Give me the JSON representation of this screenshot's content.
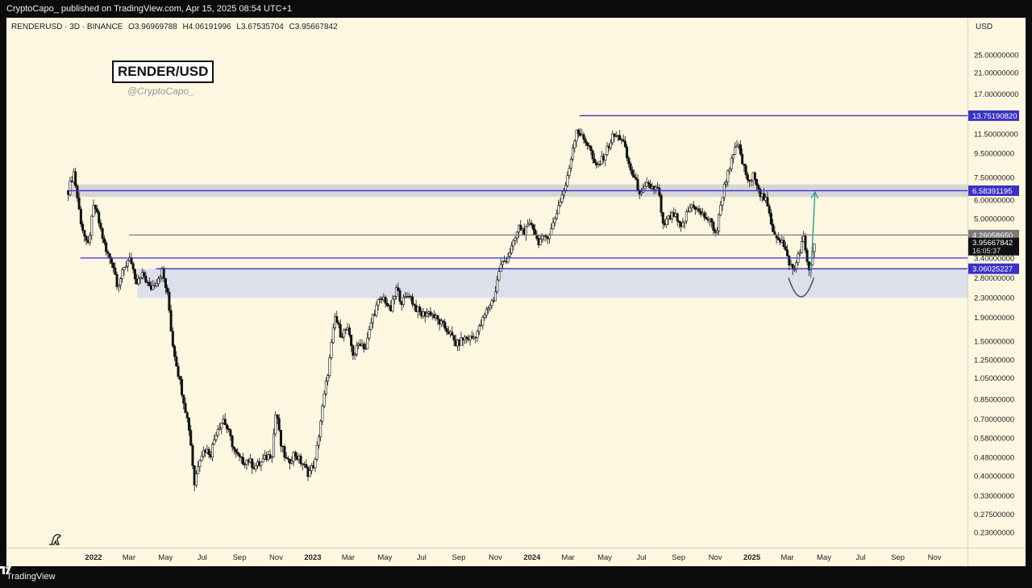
{
  "publish_line": "CryptoCapo_ published on TradingView.com, Apr 15, 2025 08:54 UTC+1",
  "footer": {
    "brand": "TradingView",
    "logo_icon": "tradingview-logo-icon"
  },
  "symbol_line": {
    "symbol": "RENDERUSD · 3D · BINANCE",
    "open": "O3.96969788",
    "high": "H4.06191996",
    "low": "L3.67535704",
    "close": "C3.95667842"
  },
  "watermark": {
    "title": "RENDER/USD",
    "handle": "@CryptoCapo_"
  },
  "axis": {
    "currency": "USD"
  },
  "chart_data": {
    "type": "candlestick",
    "scale": "log",
    "ylim": [
      0.2,
      32
    ],
    "y_ticks": [
      "25.00000000",
      "21.00000000",
      "17.00000000",
      "11.50000000",
      "9.50000000",
      "7.50000000",
      "6.00000000",
      "5.00000000",
      "3.40000000",
      "2.80000000",
      "2.30000000",
      "1.90000000",
      "1.50000000",
      "1.25000000",
      "1.05000000",
      "0.85000000",
      "0.70000000",
      "0.58000000",
      "0.48000000",
      "0.40000000",
      "0.33000000",
      "0.27500000",
      "0.23000000"
    ],
    "x_ticks": [
      {
        "label": "2022",
        "date": "2022-01-01",
        "bold": true
      },
      {
        "label": "Mar",
        "date": "2022-03-01"
      },
      {
        "label": "May",
        "date": "2022-05-01"
      },
      {
        "label": "Jul",
        "date": "2022-07-01"
      },
      {
        "label": "Sep",
        "date": "2022-09-01"
      },
      {
        "label": "Nov",
        "date": "2022-11-01"
      },
      {
        "label": "2023",
        "date": "2023-01-01",
        "bold": true
      },
      {
        "label": "Mar",
        "date": "2023-03-01"
      },
      {
        "label": "May",
        "date": "2023-05-01"
      },
      {
        "label": "Jul",
        "date": "2023-07-01"
      },
      {
        "label": "Sep",
        "date": "2023-09-01"
      },
      {
        "label": "Nov",
        "date": "2023-11-01"
      },
      {
        "label": "2024",
        "date": "2024-01-01",
        "bold": true
      },
      {
        "label": "Mar",
        "date": "2024-03-01"
      },
      {
        "label": "May",
        "date": "2024-05-01"
      },
      {
        "label": "Jul",
        "date": "2024-07-01"
      },
      {
        "label": "Sep",
        "date": "2024-09-01"
      },
      {
        "label": "Nov",
        "date": "2024-11-01"
      },
      {
        "label": "2025",
        "date": "2025-01-01",
        "bold": true
      },
      {
        "label": "Mar",
        "date": "2025-03-01"
      },
      {
        "label": "May",
        "date": "2025-05-01"
      },
      {
        "label": "Jul",
        "date": "2025-07-01"
      },
      {
        "label": "Sep",
        "date": "2025-09-01"
      },
      {
        "label": "Nov",
        "date": "2025-11-01"
      }
    ],
    "price_path": [
      [
        "2021-11-20",
        6.6
      ],
      [
        "2021-11-29",
        7.9
      ],
      [
        "2021-12-10",
        5.0
      ],
      [
        "2021-12-22",
        3.7
      ],
      [
        "2022-01-02",
        5.8
      ],
      [
        "2022-01-12",
        4.6
      ],
      [
        "2022-01-22",
        3.6
      ],
      [
        "2022-02-01",
        3.3
      ],
      [
        "2022-02-10",
        2.6
      ],
      [
        "2022-02-20",
        3.0
      ],
      [
        "2022-03-02",
        3.5
      ],
      [
        "2022-03-12",
        2.6
      ],
      [
        "2022-03-25",
        2.9
      ],
      [
        "2022-04-05",
        2.5
      ],
      [
        "2022-04-15",
        2.7
      ],
      [
        "2022-04-25",
        3.0
      ],
      [
        "2022-05-05",
        2.3
      ],
      [
        "2022-05-12",
        1.5
      ],
      [
        "2022-05-22",
        1.1
      ],
      [
        "2022-06-01",
        0.82
      ],
      [
        "2022-06-10",
        0.62
      ],
      [
        "2022-06-18",
        0.37
      ],
      [
        "2022-06-26",
        0.48
      ],
      [
        "2022-07-05",
        0.52
      ],
      [
        "2022-07-15",
        0.5
      ],
      [
        "2022-07-25",
        0.63
      ],
      [
        "2022-08-05",
        0.7
      ],
      [
        "2022-08-15",
        0.6
      ],
      [
        "2022-08-25",
        0.5
      ],
      [
        "2022-09-05",
        0.46
      ],
      [
        "2022-09-15",
        0.47
      ],
      [
        "2022-09-25",
        0.44
      ],
      [
        "2022-10-05",
        0.45
      ],
      [
        "2022-10-15",
        0.48
      ],
      [
        "2022-10-25",
        0.5
      ],
      [
        "2022-11-01",
        0.78
      ],
      [
        "2022-11-08",
        0.55
      ],
      [
        "2022-11-20",
        0.45
      ],
      [
        "2022-12-01",
        0.5
      ],
      [
        "2022-12-15",
        0.45
      ],
      [
        "2022-12-25",
        0.41
      ],
      [
        "2023-01-05",
        0.46
      ],
      [
        "2023-01-15",
        0.72
      ],
      [
        "2023-01-28",
        1.2
      ],
      [
        "2023-02-07",
        1.9
      ],
      [
        "2023-02-17",
        1.6
      ],
      [
        "2023-02-27",
        1.7
      ],
      [
        "2023-03-10",
        1.3
      ],
      [
        "2023-03-20",
        1.5
      ],
      [
        "2023-03-30",
        1.4
      ],
      [
        "2023-04-10",
        1.9
      ],
      [
        "2023-04-20",
        2.2
      ],
      [
        "2023-04-30",
        2.3
      ],
      [
        "2023-05-10",
        2.0
      ],
      [
        "2023-05-20",
        2.5
      ],
      [
        "2023-05-30",
        2.2
      ],
      [
        "2023-06-10",
        2.4
      ],
      [
        "2023-06-20",
        2.1
      ],
      [
        "2023-07-01",
        1.95
      ],
      [
        "2023-07-15",
        2.0
      ],
      [
        "2023-08-01",
        1.8
      ],
      [
        "2023-08-15",
        1.65
      ],
      [
        "2023-08-28",
        1.45
      ],
      [
        "2023-09-10",
        1.55
      ],
      [
        "2023-09-25",
        1.55
      ],
      [
        "2023-10-05",
        1.7
      ],
      [
        "2023-10-20",
        2.1
      ],
      [
        "2023-10-30",
        2.3
      ],
      [
        "2023-11-08",
        3.1
      ],
      [
        "2023-11-20",
        3.4
      ],
      [
        "2023-12-01",
        3.9
      ],
      [
        "2023-12-10",
        4.6
      ],
      [
        "2023-12-20",
        4.4
      ],
      [
        "2024-01-01",
        4.8
      ],
      [
        "2024-01-10",
        4.0
      ],
      [
        "2024-01-20",
        4.1
      ],
      [
        "2024-02-01",
        4.4
      ],
      [
        "2024-02-15",
        5.8
      ],
      [
        "2024-02-28",
        7.2
      ],
      [
        "2024-03-08",
        9.8
      ],
      [
        "2024-03-15",
        12.1
      ],
      [
        "2024-03-25",
        11.0
      ],
      [
        "2024-04-05",
        10.3
      ],
      [
        "2024-04-15",
        8.2
      ],
      [
        "2024-04-25",
        8.8
      ],
      [
        "2024-05-05",
        9.9
      ],
      [
        "2024-05-15",
        11.3
      ],
      [
        "2024-05-30",
        11.0
      ],
      [
        "2024-06-10",
        8.5
      ],
      [
        "2024-06-20",
        7.3
      ],
      [
        "2024-07-01",
        6.3
      ],
      [
        "2024-07-10",
        6.9
      ],
      [
        "2024-07-20",
        6.8
      ],
      [
        "2024-07-30",
        6.6
      ],
      [
        "2024-08-05",
        4.6
      ],
      [
        "2024-08-15",
        5.0
      ],
      [
        "2024-08-25",
        5.2
      ],
      [
        "2024-09-05",
        4.5
      ],
      [
        "2024-09-15",
        5.3
      ],
      [
        "2024-09-25",
        5.8
      ],
      [
        "2024-10-05",
        5.3
      ],
      [
        "2024-10-15",
        5.1
      ],
      [
        "2024-10-25",
        4.8
      ],
      [
        "2024-11-03",
        4.3
      ],
      [
        "2024-11-12",
        6.2
      ],
      [
        "2024-11-22",
        8.0
      ],
      [
        "2024-12-01",
        9.2
      ],
      [
        "2024-12-08",
        10.5
      ],
      [
        "2024-12-18",
        8.3
      ],
      [
        "2024-12-28",
        7.0
      ],
      [
        "2025-01-05",
        7.8
      ],
      [
        "2025-01-15",
        6.4
      ],
      [
        "2025-01-25",
        5.9
      ],
      [
        "2025-02-03",
        4.6
      ],
      [
        "2025-02-12",
        4.2
      ],
      [
        "2025-02-20",
        4.0
      ],
      [
        "2025-03-01",
        3.4
      ],
      [
        "2025-03-08",
        3.1
      ],
      [
        "2025-03-12",
        2.95
      ],
      [
        "2025-03-20",
        3.6
      ],
      [
        "2025-03-28",
        4.1
      ],
      [
        "2025-04-04",
        3.2
      ],
      [
        "2025-04-08",
        3.0
      ],
      [
        "2025-04-15",
        3.96
      ]
    ],
    "horizontal_lines": [
      {
        "value": 13.7519082,
        "label": "13.75190820",
        "color": "#3a31c8",
        "from": "2024-03-20"
      },
      {
        "value": 6.58391195,
        "label": "6.58391195",
        "color": "#3a31c8",
        "from": "2021-11-20"
      },
      {
        "value": 4.2605865,
        "label": "4.26058650",
        "color": "#7b7b7b",
        "from": "2022-03-01"
      },
      {
        "value": 3.4,
        "label": "",
        "color": "#3a31c8",
        "from": "2021-12-10"
      },
      {
        "value": 3.06025227,
        "label": "3.06025227",
        "color": "#3a31c8",
        "from": "2022-04-15"
      }
    ],
    "zones": [
      {
        "from": 6.2,
        "to": 7.0,
        "start": "2021-11-20",
        "color": "#cfcfd4"
      },
      {
        "from": 2.3,
        "to": 3.06,
        "start": "2022-03-15",
        "color": "#d7dbec"
      }
    ],
    "last_price": {
      "value": 3.95667842,
      "label": "3.95667842",
      "countdown": "16:05:37"
    },
    "arrow": {
      "from_date": "2025-04-09",
      "from": 2.8,
      "to_date": "2025-04-16",
      "to": 6.5,
      "color": "#2e9c8e"
    },
    "arc": {
      "start_date": "2025-03-03",
      "end_date": "2025-04-14",
      "top": 2.8,
      "bottom": 2.3
    }
  }
}
